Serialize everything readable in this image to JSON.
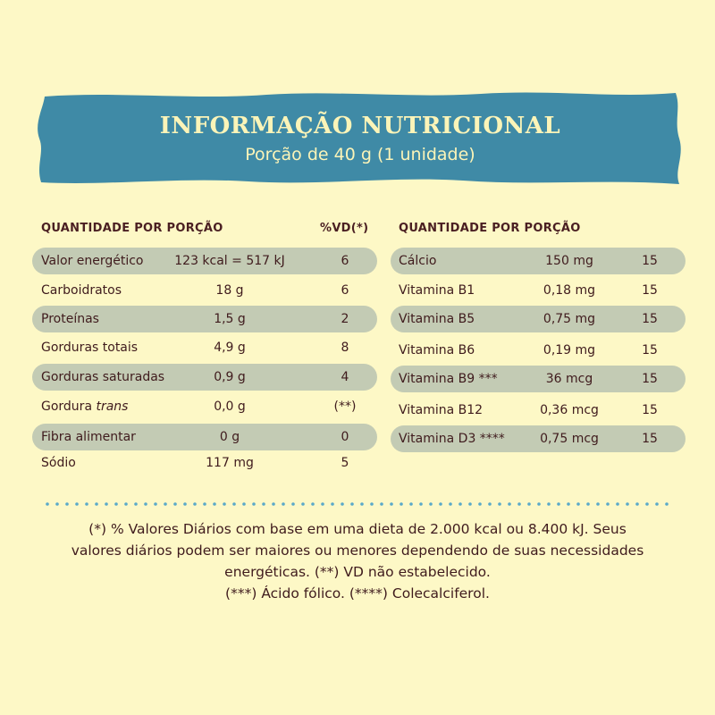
{
  "header": {
    "title": "INFORMAÇÃO NUTRICIONAL",
    "subtitle": "Porção de 40 g (1 unidade)"
  },
  "left_table": {
    "header_label": "QUANTIDADE POR PORÇÃO",
    "header_vd": "%VD(*)",
    "rows": [
      {
        "name": "Valor energético",
        "amount": "123 kcal = 517 kJ",
        "vd": "6"
      },
      {
        "name": "Carboidratos",
        "amount": "18 g",
        "vd": "6"
      },
      {
        "name": "Proteínas",
        "amount": "1,5 g",
        "vd": "2"
      },
      {
        "name": "Gorduras totais",
        "amount": "4,9 g",
        "vd": "8"
      },
      {
        "name": "Gorduras saturadas",
        "amount": "0,9 g",
        "vd": "4"
      },
      {
        "name": "Gordura",
        "name_italic": "trans",
        "amount": "0,0 g",
        "vd": "(**)"
      },
      {
        "name": "Fibra alimentar",
        "amount": "0 g",
        "vd": "0"
      },
      {
        "name": "Sódio",
        "amount": "117 mg",
        "vd": "5"
      }
    ]
  },
  "right_table": {
    "header_label": "QUANTIDADE POR PORÇÃO",
    "rows": [
      {
        "name": "Cálcio",
        "amount": "150 mg",
        "vd": "15"
      },
      {
        "name": "Vitamina B1",
        "amount": "0,18 mg",
        "vd": "15"
      },
      {
        "name": "Vitamina B5",
        "amount": "0,75 mg",
        "vd": "15"
      },
      {
        "name": "Vitamina B6",
        "amount": "0,19 mg",
        "vd": "15"
      },
      {
        "name": "Vitamina B9 ***",
        "amount": "36 mcg",
        "vd": "15"
      },
      {
        "name": "Vitamina B12",
        "amount": "0,36 mcg",
        "vd": "15"
      },
      {
        "name": "Vitamina D3 ****",
        "amount": "0,75 mcg",
        "vd": "15"
      }
    ]
  },
  "footnote": {
    "lines": [
      "(*) % Valores Diários com base em uma dieta de 2.000 kcal ou 8.400 kJ. Seus",
      "valores diários podem ser maiores ou menores dependendo de suas necessidades",
      "energéticas. (**) VD não estabelecido.",
      "(***) Ácido fólico. (****) Colecalciferol."
    ]
  },
  "colors": {
    "background": "#fdf8c6",
    "banner": "#3f8aa6",
    "text": "#4a1f22",
    "row_shade": "#c3cbb4",
    "dots": "#5aa9c9"
  }
}
